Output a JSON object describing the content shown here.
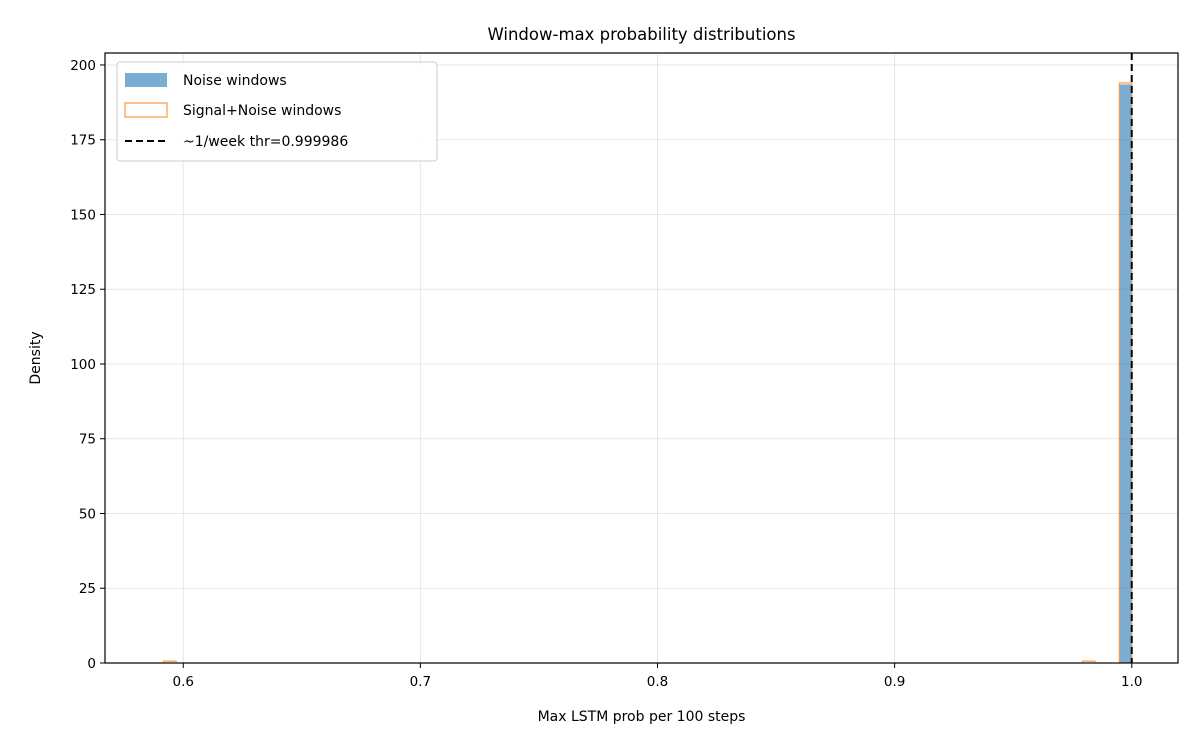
{
  "chart_data": {
    "type": "histogram",
    "title": "Window-max probability distributions",
    "xlabel": "Max LSTM prob per 100 steps",
    "ylabel": "Density",
    "xlim": [
      0.567,
      1.0195
    ],
    "ylim": [
      0,
      204
    ],
    "xticks": [
      0.6,
      0.7,
      0.8,
      0.9,
      1.0
    ],
    "xtick_labels": [
      "0.6",
      "0.7",
      "0.8",
      "0.9",
      "1.0"
    ],
    "yticks": [
      0,
      25,
      50,
      75,
      100,
      125,
      150,
      175,
      200
    ],
    "ytick_labels": [
      "0",
      "25",
      "50",
      "75",
      "100",
      "125",
      "150",
      "175",
      "200"
    ],
    "grid": true,
    "legend_position": "top-left",
    "series": [
      {
        "name": "Noise windows",
        "style": "filled",
        "color": "#1f77b4",
        "bins": [
          {
            "x0": 0.9948,
            "x1": 0.99998,
            "value": 193.5
          }
        ]
      },
      {
        "name": "Signal+Noise windows",
        "style": "step",
        "color": "#ff7f0e",
        "bins": [
          {
            "x0": 0.5917,
            "x1": 0.5969,
            "value": 0.6
          },
          {
            "x0": 0.9792,
            "x1": 0.9844,
            "value": 0.6
          },
          {
            "x0": 0.9948,
            "x1": 1.0,
            "value": 194
          }
        ]
      },
      {
        "name": "~1/week thr=0.999986",
        "style": "vline",
        "color": "#000000",
        "x": 0.999986
      }
    ]
  }
}
